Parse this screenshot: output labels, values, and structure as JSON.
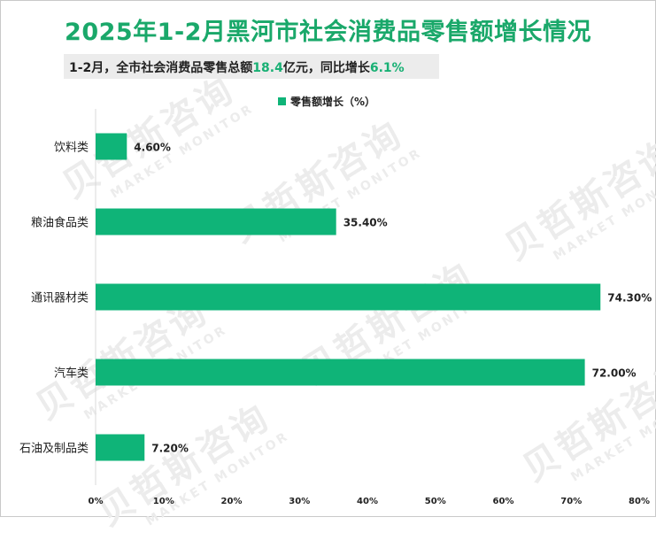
{
  "title": "2025年1-2月黑河市社会消费品零售额增长情况",
  "subtitle": {
    "prefix": "1-2月，全市社会消费品零售总额",
    "total": "18.4",
    "middle": "亿元，同比增长",
    "growth": "6.1%"
  },
  "watermark": {
    "cn": "贝哲斯咨询",
    "en": "MARKET MONITOR"
  },
  "colors": {
    "bar": "#0fb478",
    "title": "#1aa86a",
    "highlight": "#18b074"
  },
  "chart_data": {
    "type": "bar",
    "orientation": "horizontal",
    "title": "2025年1-2月黑河市社会消费品零售额增长情况",
    "legend": "零售额增长（%）",
    "legend_position": "top-center",
    "categories": [
      "饮料类",
      "粮油食品类",
      "通讯器材类",
      "汽车类",
      "石油及制品类"
    ],
    "values": [
      4.6,
      35.4,
      74.3,
      72.0,
      7.2
    ],
    "value_labels": [
      "4.60%",
      "35.40%",
      "74.30%",
      "72.00%",
      "7.20%"
    ],
    "xlim": [
      0,
      80
    ],
    "xticks": [
      0,
      10,
      20,
      30,
      40,
      50,
      60,
      70,
      80
    ],
    "xtick_labels": [
      "0%",
      "10%",
      "20%",
      "30%",
      "40%",
      "50%",
      "60%",
      "70%",
      "80%"
    ],
    "grid": false
  }
}
